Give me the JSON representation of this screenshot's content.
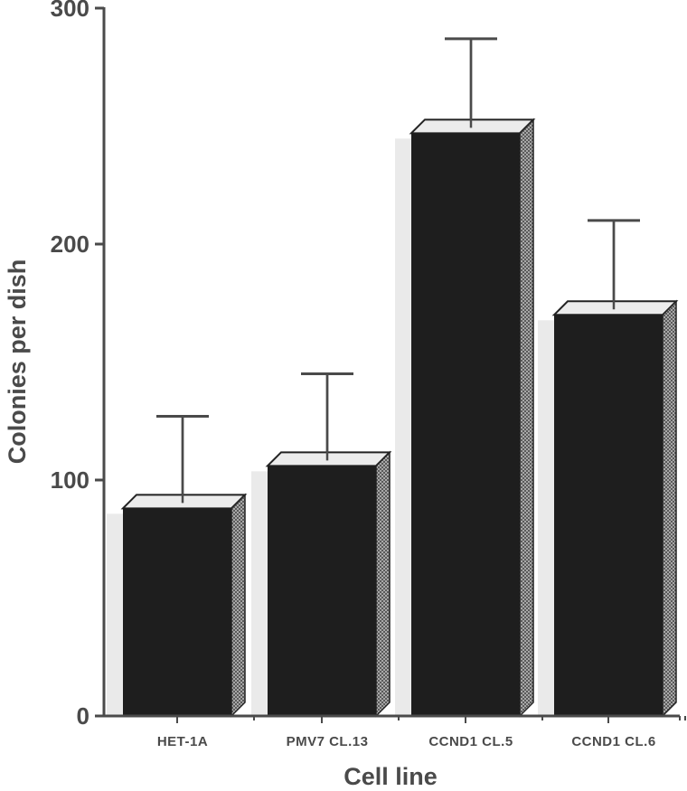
{
  "chart_data": {
    "type": "bar",
    "title": "",
    "xlabel": "Cell line",
    "ylabel": "Colonies per dish",
    "ylim": [
      0,
      300
    ],
    "yticks": [
      0,
      100,
      200,
      300
    ],
    "grid": false,
    "style": "3d-bars-with-error-bars",
    "categories": [
      "HET-1A",
      "PMV7  CL.13",
      "CCND1  CL.5",
      "CCND1  CL.6"
    ],
    "values": [
      88,
      106,
      247,
      170
    ],
    "error_upper": [
      127,
      145,
      287,
      210
    ],
    "colors": {
      "bar_front": "#1e1e1e",
      "bar_top": "#ececec",
      "bar_side": "#6e6e6e",
      "axis": "#4a4a4a",
      "shadow": "#eaeaea"
    }
  }
}
